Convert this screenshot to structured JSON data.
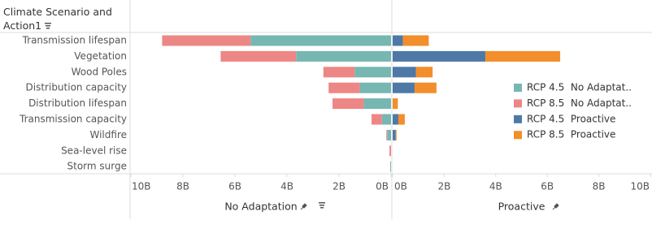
{
  "chart_data": {
    "type": "butterfly",
    "row_header": "Climate Scenario and Action1",
    "categories": [
      "Transmission lifespan",
      "Vegetation",
      "Wood Poles",
      "Distribution capacity",
      "Distribution lifespan",
      "Transmission capacity",
      "Wildfire",
      "Sea-level rise",
      "Storm surge"
    ],
    "legend": "right",
    "panels": [
      {
        "title": "No Adaptation",
        "reversed": true,
        "xlim": [
          0,
          10
        ],
        "xticks": [
          {
            "value": 10,
            "label": "10B"
          },
          {
            "value": 8,
            "label": "8B"
          },
          {
            "value": 6,
            "label": "6B"
          },
          {
            "value": 4,
            "label": "4B"
          },
          {
            "value": 2,
            "label": "2B"
          },
          {
            "value": 0,
            "label": "0B"
          }
        ],
        "series": [
          {
            "name": "RCP 4.5  No Adaptat..",
            "color": "#76b7b2",
            "values": [
              5.4,
              3.65,
              1.4,
              1.2,
              1.05,
              0.35,
              0.15,
              0,
              0.03
            ]
          },
          {
            "name": "RCP 8.5  No Adaptat..",
            "color": "#ec8785",
            "values": [
              3.4,
              2.9,
              1.2,
              1.2,
              1.2,
              0.4,
              0.03,
              0.06,
              0
            ]
          }
        ]
      },
      {
        "title": "Proactive",
        "reversed": false,
        "xlim": [
          0,
          10
        ],
        "xticks": [
          {
            "value": 0,
            "label": "0B"
          },
          {
            "value": 2,
            "label": "2B"
          },
          {
            "value": 4,
            "label": "4B"
          },
          {
            "value": 6,
            "label": "6B"
          },
          {
            "value": 8,
            "label": "8B"
          },
          {
            "value": 10,
            "label": "10B"
          }
        ],
        "series": [
          {
            "name": "RCP 4.5  Proactive",
            "color": "#4e79a7",
            "values": [
              0.4,
              3.6,
              0.9,
              0.85,
              0,
              0.22,
              0.12,
              0,
              0
            ]
          },
          {
            "name": "RCP 8.5  Proactive",
            "color": "#f28e2b",
            "values": [
              1.0,
              2.9,
              0.65,
              0.85,
              0.2,
              0.25,
              0.03,
              0,
              0
            ]
          }
        ]
      }
    ]
  }
}
